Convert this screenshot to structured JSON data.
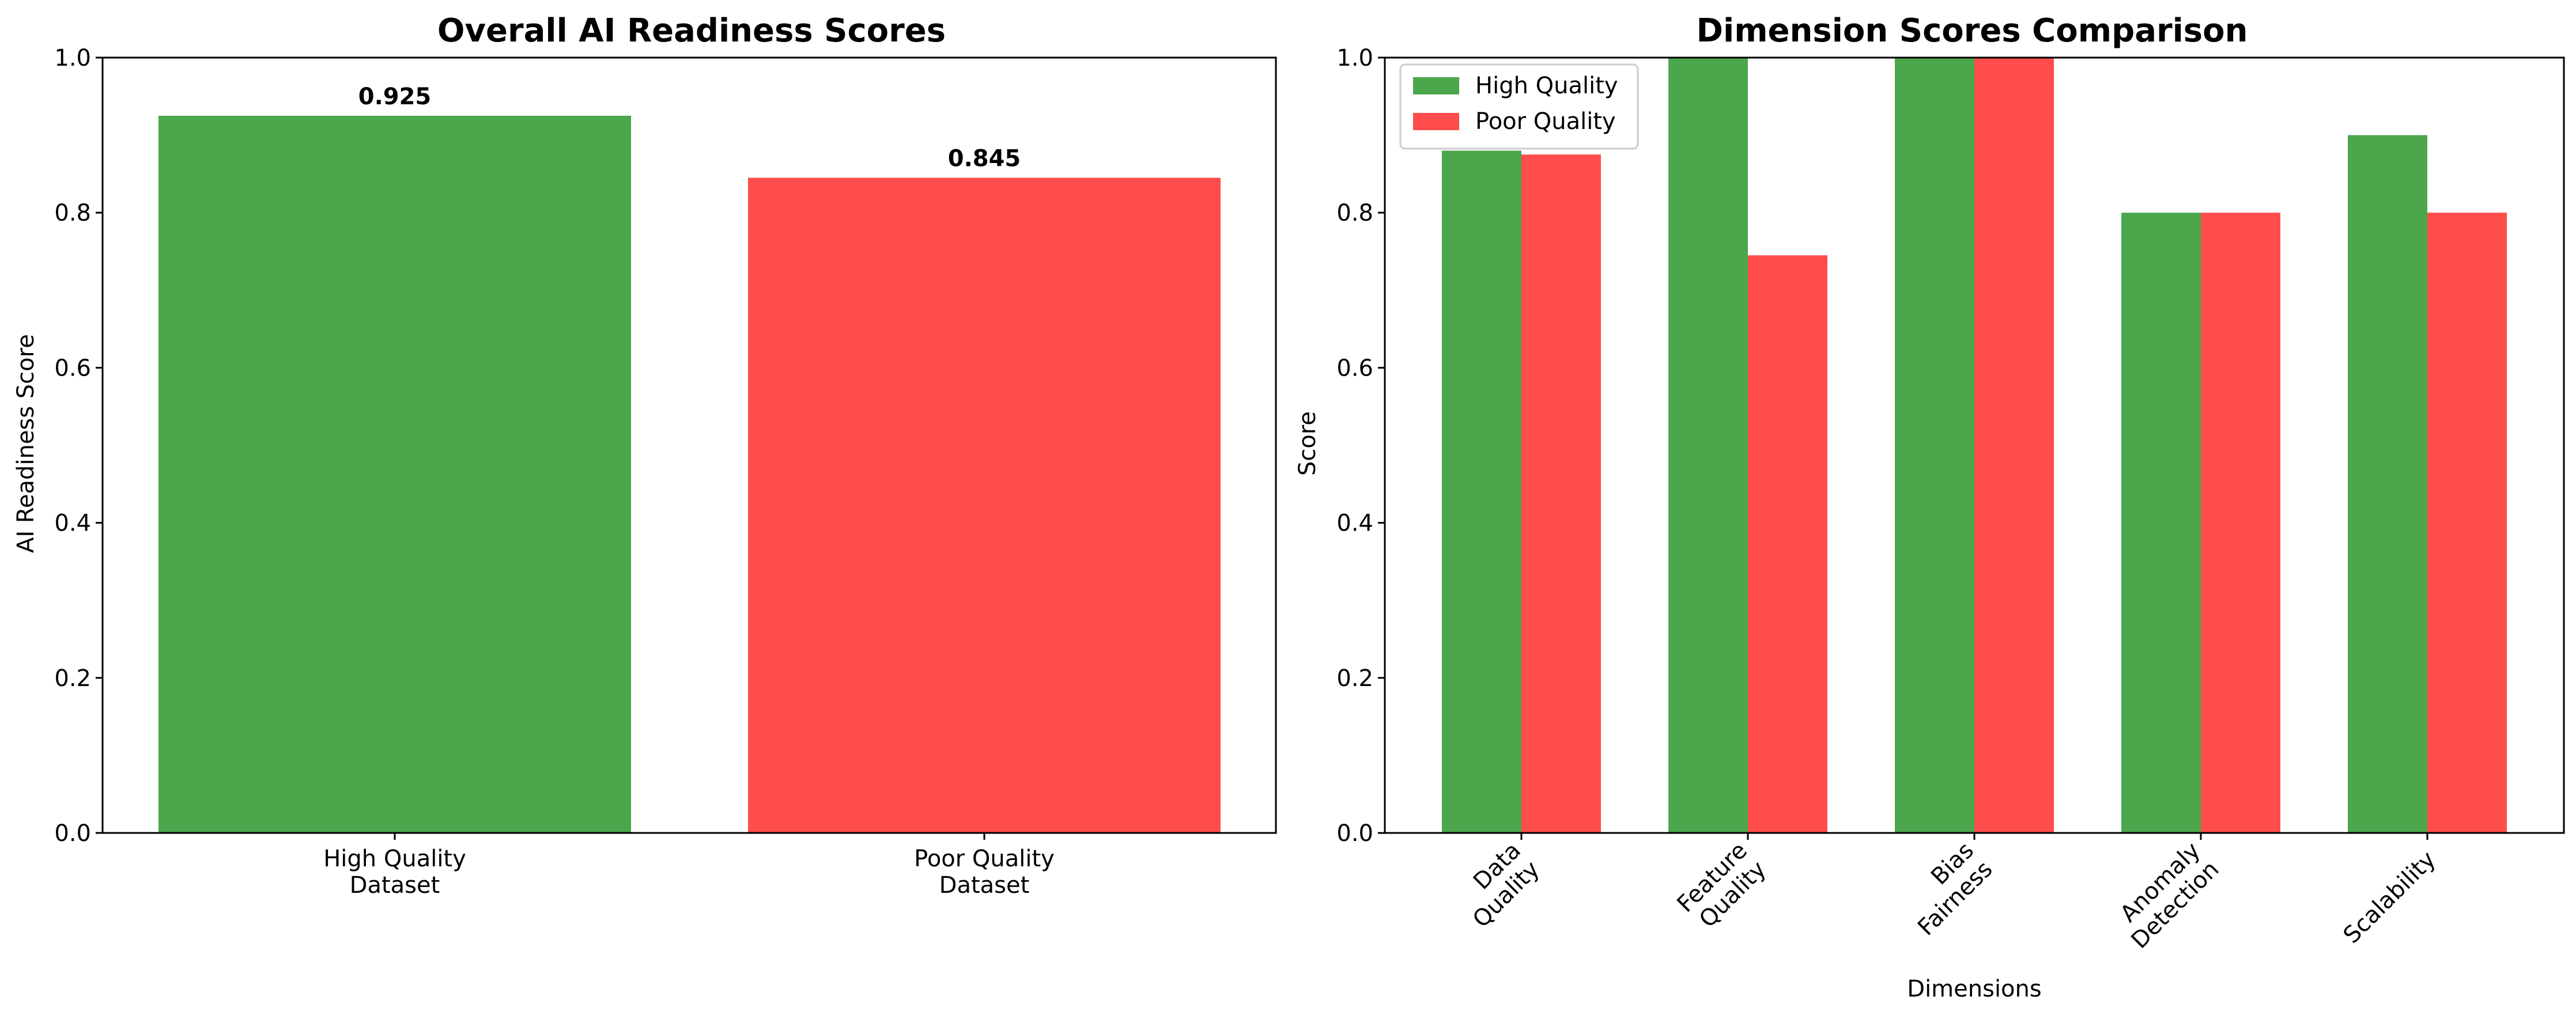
{
  "chart_data": [
    {
      "type": "bar",
      "title": "Overall AI Readiness Scores",
      "xlabel": "",
      "ylabel": "AI Readiness Score",
      "ylim": [
        0,
        1.0
      ],
      "yticks": [
        "0.0",
        "0.2",
        "0.4",
        "0.6",
        "0.8",
        "1.0"
      ],
      "categories": [
        [
          "High Quality",
          "Dataset"
        ],
        [
          "Poor Quality",
          "Dataset"
        ]
      ],
      "values": [
        0.925,
        0.845
      ],
      "value_labels": [
        "0.925",
        "0.845"
      ],
      "colors": [
        "#4ca64c",
        "#ff4c4c"
      ],
      "grid": false
    },
    {
      "type": "bar",
      "title": "Dimension Scores Comparison",
      "xlabel": "Dimensions",
      "ylabel": "Score",
      "ylim": [
        0,
        1.0
      ],
      "yticks": [
        "0.0",
        "0.2",
        "0.4",
        "0.6",
        "0.8",
        "1.0"
      ],
      "categories": [
        [
          "Data",
          "Quality"
        ],
        [
          "Feature",
          "Quality"
        ],
        [
          "Bias",
          "Fairness"
        ],
        [
          "Anomaly",
          "Detection"
        ],
        [
          "Scalability"
        ]
      ],
      "series": [
        {
          "name": "High Quality",
          "color": "#4ca64c",
          "values": [
            0.88,
            1.0,
            1.0,
            0.8,
            0.9
          ]
        },
        {
          "name": "Poor Quality",
          "color": "#ff4c4c",
          "values": [
            0.875,
            0.745,
            1.0,
            0.8,
            0.8
          ]
        }
      ],
      "legend": "top-left",
      "grid": false
    }
  ]
}
